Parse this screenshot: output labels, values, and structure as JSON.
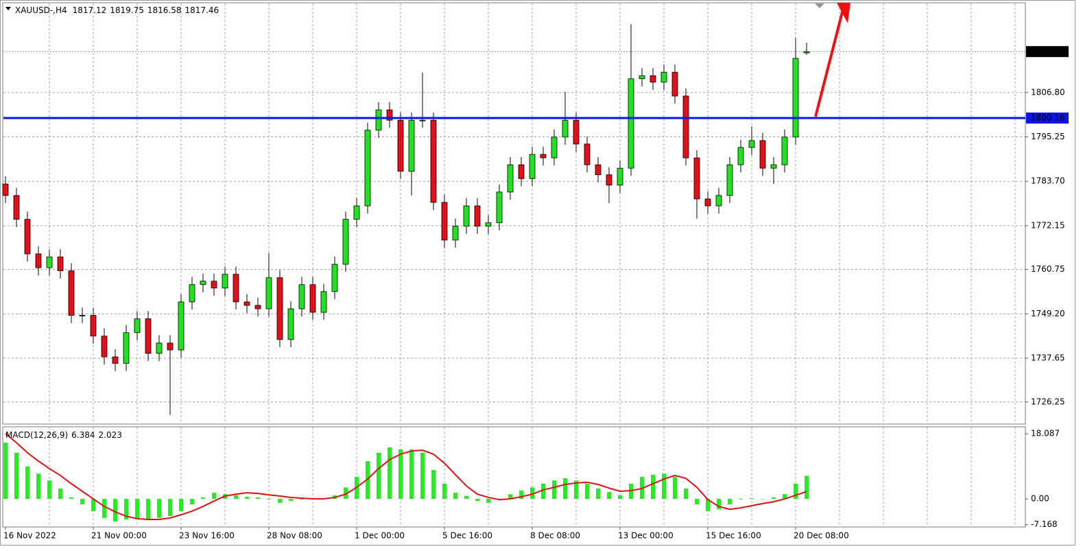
{
  "chart_data": [
    {
      "type": "candlestick",
      "title": "XAUUSD-,H4",
      "categories": [
        "16 Nov 2022",
        null,
        null,
        null,
        null,
        null,
        null,
        null,
        "21 Nov 00:00",
        null,
        null,
        null,
        null,
        null,
        null,
        null,
        "23 Nov 16:00",
        null,
        null,
        null,
        null,
        null,
        null,
        null,
        "28 Nov 08:00",
        null,
        null,
        null,
        null,
        null,
        null,
        null,
        "1 Dec 00:00",
        null,
        null,
        null,
        null,
        null,
        null,
        null,
        "5 Dec 16:00",
        null,
        null,
        null,
        null,
        null,
        null,
        null,
        "8 Dec 08:00",
        null,
        null,
        null,
        null,
        null,
        null,
        null,
        "13 Dec 00:00",
        null,
        null,
        null,
        null,
        null,
        null,
        null,
        "15 Dec 16:00",
        null,
        null,
        null,
        null,
        null,
        null,
        null,
        "20 Dec 08:00",
        null
      ],
      "open": [
        1783.0,
        1780.0,
        1773.8,
        1764.8,
        1761.2,
        1764.0,
        1760.4,
        1748.8,
        1748.8,
        1743.4,
        1738.0,
        1736.3,
        1744.3,
        1747.9,
        1738.9,
        1741.6,
        1739.8,
        1752.3,
        1756.8,
        1757.7,
        1755.9,
        1759.5,
        1752.3,
        1751.4,
        1750.5,
        1758.6,
        1742.5,
        1750.5,
        1756.8,
        1749.6,
        1755.0,
        1762.1,
        1773.8,
        1777.3,
        1797.0,
        1802.3,
        1799.6,
        1786.3,
        1799.6,
        1799.6,
        1778.2,
        1768.4,
        1772.0,
        1777.3,
        1772.0,
        1772.9,
        1780.9,
        1788.0,
        1784.4,
        1790.7,
        1789.8,
        1795.2,
        1799.6,
        1793.4,
        1788.0,
        1785.4,
        1782.7,
        1787.1,
        1810.4,
        1811.2,
        1809.5,
        1812.1,
        1805.9,
        1789.8,
        1779.1,
        1777.3,
        1780.0,
        1788.0,
        1792.5,
        1794.3,
        1787.1,
        1788.0,
        1795.2,
        1817.12
      ],
      "high": [
        1785.0,
        1782.0,
        1775.8,
        1766.8,
        1766.0,
        1766.0,
        1762.4,
        1750.8,
        1750.8,
        1745.4,
        1740.0,
        1746.3,
        1749.9,
        1749.9,
        1743.6,
        1743.6,
        1754.3,
        1758.8,
        1759.7,
        1759.7,
        1761.5,
        1761.5,
        1754.3,
        1753.4,
        1765.0,
        1760.6,
        1752.5,
        1758.8,
        1758.8,
        1757.0,
        1764.1,
        1775.8,
        1779.3,
        1799.0,
        1804.3,
        1804.3,
        1801.6,
        1801.6,
        1812.0,
        1801.6,
        1780.2,
        1774.0,
        1779.3,
        1779.3,
        1774.9,
        1782.9,
        1790.0,
        1790.0,
        1792.7,
        1792.7,
        1797.2,
        1807.0,
        1801.6,
        1795.4,
        1790.0,
        1787.4,
        1789.1,
        1824.6,
        1813.2,
        1813.2,
        1814.1,
        1814.1,
        1807.9,
        1791.8,
        1781.1,
        1782.0,
        1790.0,
        1794.5,
        1798.0,
        1796.3,
        1790.0,
        1797.2,
        1821.0,
        1819.75
      ],
      "low": [
        1778.0,
        1771.8,
        1762.8,
        1759.2,
        1759.2,
        1758.4,
        1746.8,
        1746.8,
        1741.4,
        1736.0,
        1734.3,
        1734.3,
        1742.3,
        1736.9,
        1736.9,
        1722.9,
        1737.8,
        1750.3,
        1754.8,
        1753.9,
        1753.9,
        1750.3,
        1749.4,
        1748.5,
        1748.5,
        1740.5,
        1740.5,
        1748.5,
        1747.6,
        1747.6,
        1753.0,
        1760.1,
        1771.8,
        1775.3,
        1795.0,
        1797.6,
        1784.3,
        1780.0,
        1797.6,
        1776.2,
        1766.4,
        1766.4,
        1770.0,
        1770.0,
        1770.0,
        1770.9,
        1778.9,
        1782.4,
        1782.4,
        1787.8,
        1787.8,
        1793.2,
        1791.4,
        1786.0,
        1783.4,
        1778.0,
        1780.7,
        1785.1,
        1808.4,
        1807.5,
        1807.5,
        1803.9,
        1787.8,
        1774.0,
        1775.3,
        1775.3,
        1778.0,
        1786.0,
        1790.5,
        1785.1,
        1783.0,
        1786.0,
        1793.2,
        1816.58
      ],
      "close": [
        1780.0,
        1773.8,
        1764.8,
        1761.2,
        1764.0,
        1760.4,
        1748.8,
        1748.8,
        1743.4,
        1738.0,
        1736.3,
        1744.3,
        1747.9,
        1738.9,
        1741.6,
        1739.8,
        1752.3,
        1756.8,
        1757.7,
        1755.9,
        1759.5,
        1752.3,
        1751.4,
        1750.5,
        1758.6,
        1742.5,
        1750.5,
        1756.8,
        1749.6,
        1755.0,
        1762.1,
        1773.8,
        1777.3,
        1797.0,
        1802.3,
        1799.6,
        1786.3,
        1799.6,
        1799.6,
        1778.2,
        1768.4,
        1772.0,
        1777.3,
        1772.0,
        1772.9,
        1780.9,
        1788.0,
        1784.4,
        1790.7,
        1789.8,
        1795.2,
        1799.6,
        1793.4,
        1788.0,
        1785.4,
        1782.7,
        1787.1,
        1810.4,
        1811.2,
        1809.5,
        1812.1,
        1805.9,
        1789.8,
        1779.1,
        1777.3,
        1780.0,
        1788.0,
        1792.5,
        1794.3,
        1787.1,
        1788.0,
        1795.2,
        1815.7,
        1817.46
      ],
      "up_color": "#22e022",
      "down_color": "#e0101a",
      "level": {
        "value": 1800.16,
        "color": "#0a14e6"
      },
      "ylim": [
        1720.5,
        1830
      ],
      "yticks": [
        {
          "value": 1806.8,
          "label": "1806.80"
        },
        1795.25,
        {
          "value": 1783.7,
          "label": "1783.70"
        },
        1772.15,
        1760.75,
        {
          "value": 1749.2,
          "label": "1749.20"
        },
        1737.65,
        1726.25
      ],
      "grid": true
    },
    {
      "type": "macd",
      "title": "MACD(12,26,9)",
      "histogram": {
        "color": "#22ee22",
        "values": [
          15.6,
          12.8,
          9,
          7,
          5.1,
          2.9,
          0.4,
          -1.5,
          -3.4,
          -5.3,
          -6.3,
          -5.7,
          -5.3,
          -5.7,
          -5.3,
          -4.8,
          -3.4,
          -1.5,
          0.4,
          1.7,
          1.3,
          1,
          0.6,
          0.4,
          -0.2,
          -1.1,
          -0.6,
          -0.2,
          -0.2,
          0.2,
          1,
          3.2,
          6.1,
          10.5,
          12.8,
          14.3,
          13.7,
          13.7,
          12.8,
          8,
          4.2,
          1.7,
          0.8,
          -0.6,
          -1.1,
          -0.2,
          1.3,
          2.3,
          3.2,
          4.2,
          5.1,
          5.7,
          5.1,
          4.2,
          2.9,
          1.9,
          1,
          4.2,
          6.1,
          6.7,
          7,
          6.1,
          2.9,
          -1.5,
          -3.4,
          -2.9,
          -1.5,
          -0.2,
          0.2,
          0,
          0.4,
          1.3,
          4.2,
          6.384
        ]
      },
      "signal": {
        "color": "#e01010",
        "values": [
          18.1,
          15.6,
          12.8,
          10.5,
          8.4,
          6.5,
          4.2,
          2.1,
          0,
          -2.1,
          -3.6,
          -4.8,
          -5.5,
          -5.7,
          -5.7,
          -5.3,
          -4.4,
          -3.4,
          -2.1,
          -0.6,
          0.8,
          1.3,
          1.7,
          1.5,
          1.1,
          0.8,
          0.4,
          0.2,
          0,
          0,
          0.4,
          1.3,
          3.2,
          5.5,
          8.4,
          10.9,
          12.4,
          13.3,
          13.5,
          12.4,
          9.9,
          6.7,
          3.6,
          1.3,
          0.4,
          -0.2,
          0,
          0.6,
          1.3,
          2.5,
          3.2,
          4,
          4.4,
          4.6,
          4,
          3,
          2.1,
          2.3,
          2.9,
          4.2,
          5.5,
          6.5,
          5.7,
          3.2,
          -0.2,
          -2.1,
          -2.9,
          -2.5,
          -1.9,
          -1.3,
          -0.8,
          0,
          1,
          2.023
        ]
      },
      "ylim": [
        -7.8,
        20.0
      ],
      "yticks": [
        18.087,
        {
          "value": 0,
          "label": "0.00"
        },
        -7.168
      ]
    }
  ]
}
